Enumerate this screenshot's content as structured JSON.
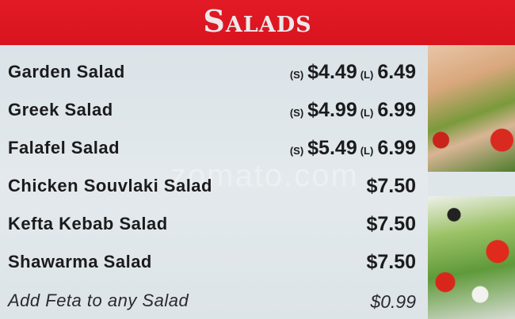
{
  "header": {
    "title": "Salads",
    "color": "#e21a26"
  },
  "watermark": "zomato.com",
  "items": [
    {
      "name": "Garden Salad",
      "small_label": "(S)",
      "small_price": "$4.49",
      "large_label": "(L)",
      "large_price": "6.49"
    },
    {
      "name": "Greek Salad",
      "small_label": "(S)",
      "small_price": "$4.99",
      "large_label": "(L)",
      "large_price": "6.99"
    },
    {
      "name": "Falafel Salad",
      "small_label": "(S)",
      "small_price": "$5.49",
      "large_label": "(L)",
      "large_price": "6.99"
    },
    {
      "name": "Chicken Souvlaki Salad",
      "price": "$7.50"
    },
    {
      "name": "Kefta Kebab Salad",
      "price": "$7.50"
    },
    {
      "name": "Shawarma Salad",
      "price": "$7.50"
    }
  ],
  "addon": {
    "name": "Add Feta to any Salad",
    "price": "$0.99"
  }
}
